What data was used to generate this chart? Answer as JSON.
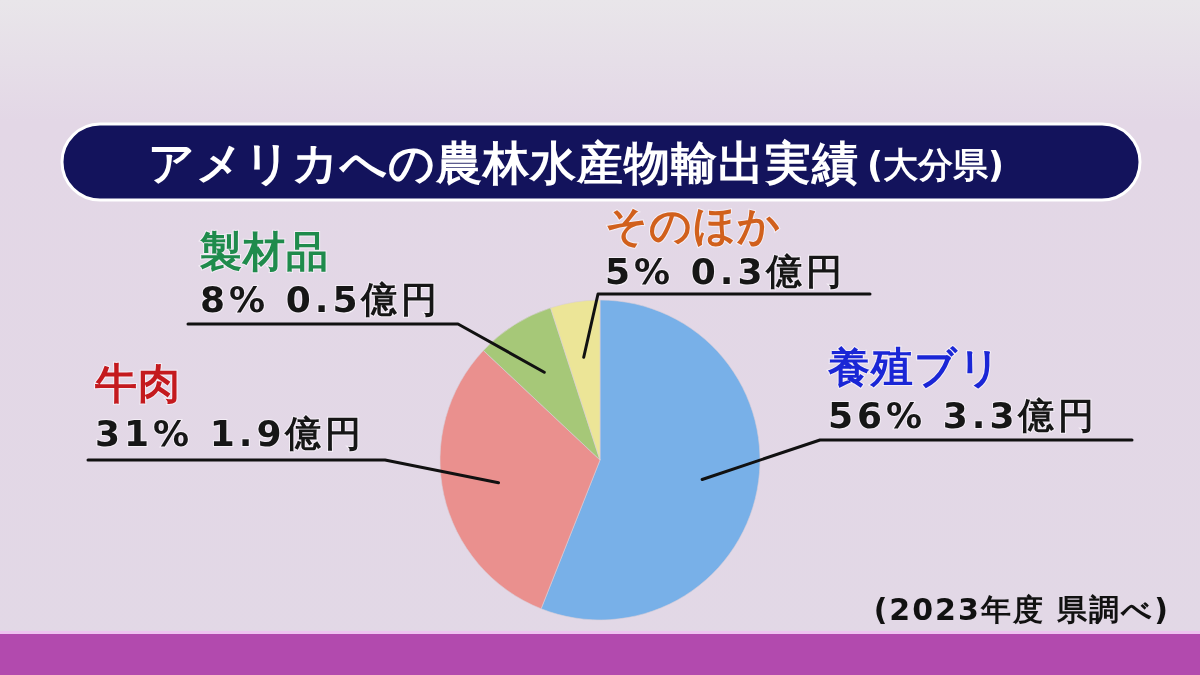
{
  "chart_data": {
    "type": "pie",
    "title": "アメリカへの農林水産物輸出実績",
    "subtitle": "(大分県)",
    "categories": [
      "養殖ブリ",
      "牛肉",
      "製材品",
      "そのほか"
    ],
    "values": [
      56,
      31,
      8,
      5
    ],
    "colors": [
      "#78b0e8",
      "#ea908e",
      "#a6c878",
      "#ece597"
    ],
    "value_labels": [
      "56% 3.3億円",
      "31% 1.9億円",
      "8% 0.5億円",
      "5% 0.3億円"
    ],
    "annotations": [
      "(2023年度 県調べ)"
    ]
  }
}
